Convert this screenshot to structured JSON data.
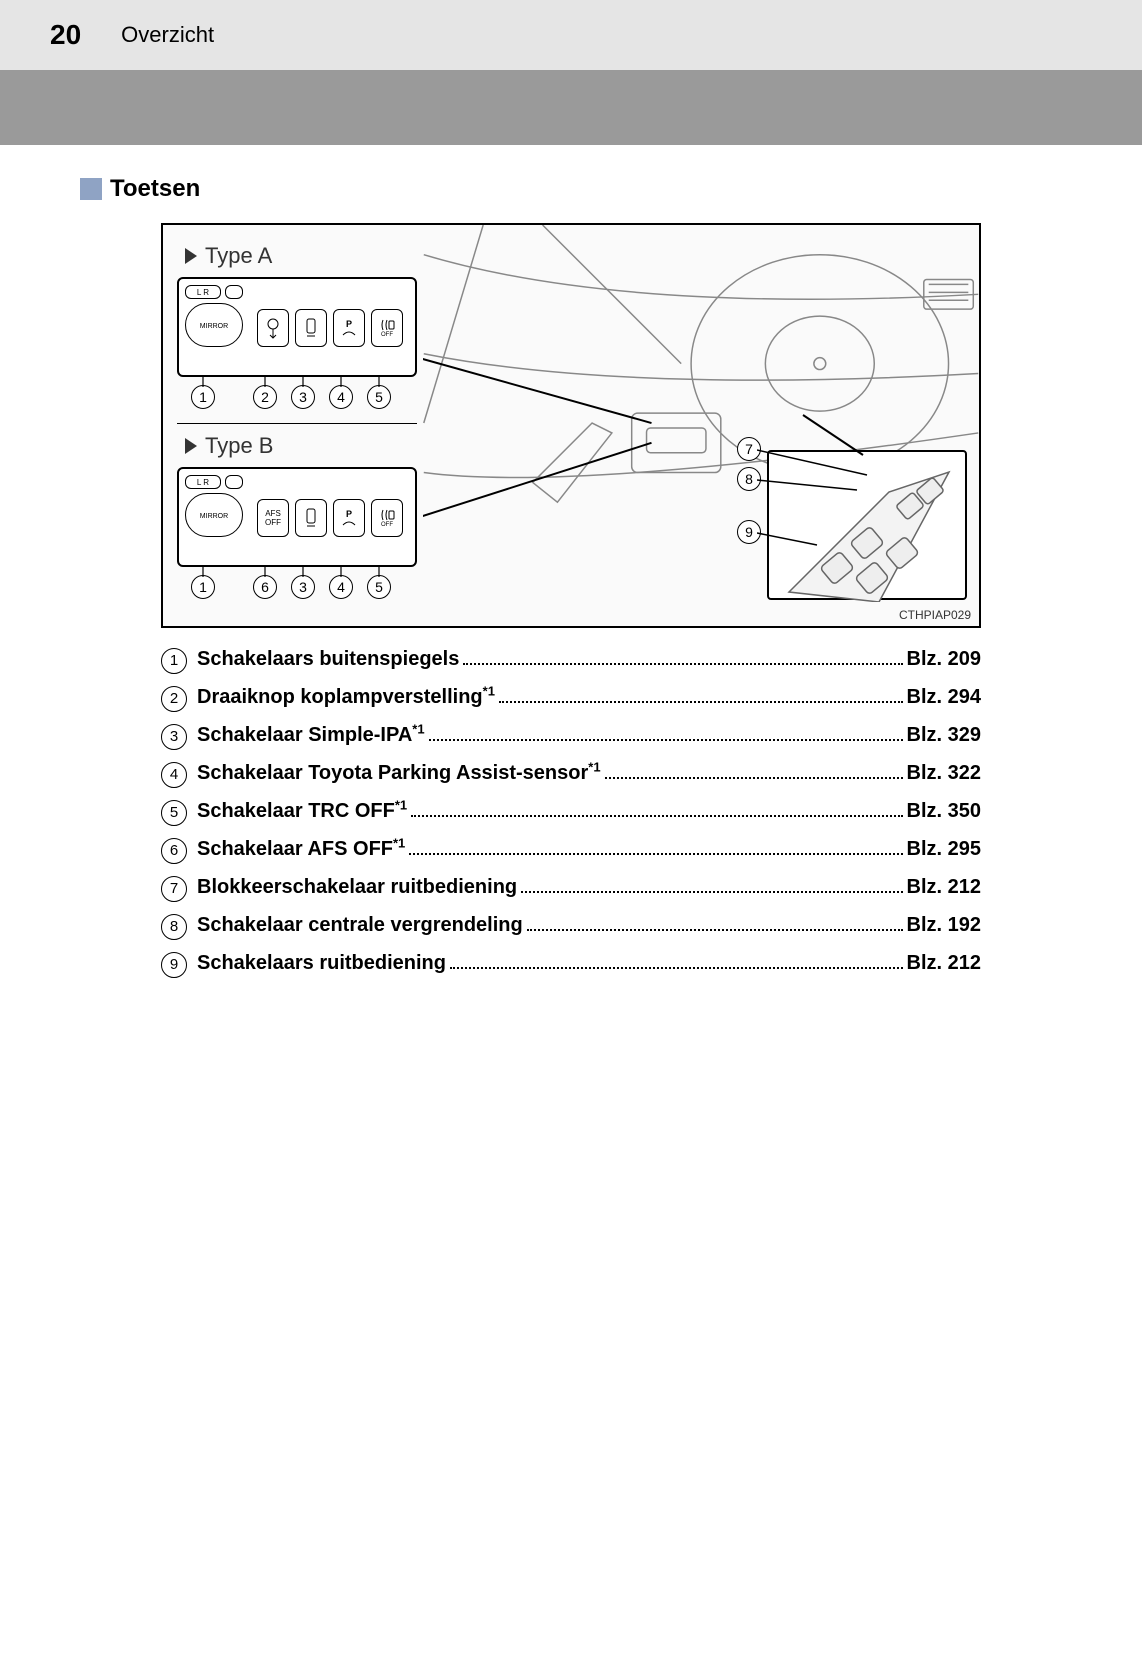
{
  "header": {
    "page_number": "20",
    "title": "Overzicht"
  },
  "section": {
    "title": "Toetsen"
  },
  "diagram": {
    "type_a_label": "Type A",
    "type_b_label": "Type B",
    "mirror_text": "MIRROR",
    "lr_text": "L  R",
    "afs_off": "AFS OFF",
    "pwa": "P",
    "off": "OFF",
    "ref_code": "CTHPIAP029",
    "callouts_a": [
      "1",
      "2",
      "3",
      "4",
      "5"
    ],
    "callouts_b": [
      "1",
      "6",
      "3",
      "4",
      "5"
    ],
    "callouts_door": [
      "7",
      "8",
      "9"
    ]
  },
  "entries": [
    {
      "n": "1",
      "label": "Schakelaars buitenspiegels",
      "sup": "",
      "page": "Blz. 209"
    },
    {
      "n": "2",
      "label": "Draaiknop koplampverstelling",
      "sup": "*1",
      "page": "Blz. 294"
    },
    {
      "n": "3",
      "label": "Schakelaar Simple-IPA",
      "sup": "*1",
      "page": "Blz. 329"
    },
    {
      "n": "4",
      "label": "Schakelaar Toyota Parking Assist-sensor",
      "sup": "*1",
      "page": "Blz. 322"
    },
    {
      "n": "5",
      "label": "Schakelaar TRC OFF",
      "sup": "*1",
      "page": "Blz. 350"
    },
    {
      "n": "6",
      "label": "Schakelaar AFS OFF",
      "sup": "*1",
      "page": "Blz. 295"
    },
    {
      "n": "7",
      "label": "Blokkeerschakelaar ruitbediening",
      "sup": "",
      "page": "Blz. 212"
    },
    {
      "n": "8",
      "label": "Schakelaar centrale vergrendeling",
      "sup": "",
      "page": "Blz. 192"
    },
    {
      "n": "9",
      "label": "Schakelaars ruitbediening",
      "sup": "",
      "page": "Blz. 212"
    }
  ],
  "colors": {
    "header_bg": "#e5e5e5",
    "band_bg": "#9a9a9a",
    "accent_square": "#8fa3c4"
  }
}
